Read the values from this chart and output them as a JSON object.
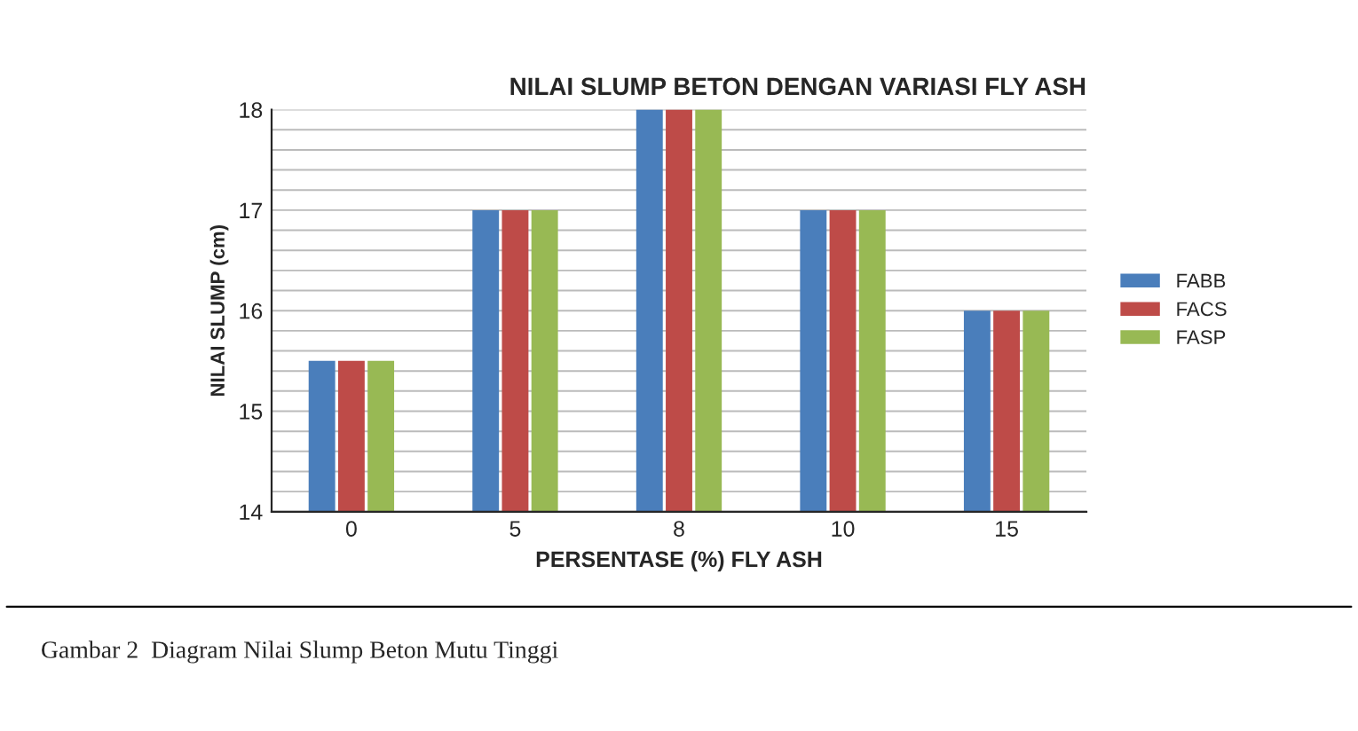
{
  "chart_data": {
    "type": "bar",
    "title": "NILAI SLUMP BETON DENGAN VARIASI FLY ASH",
    "xlabel": "PERSENTASE (%) FLY ASH",
    "ylabel": "NILAI SLUMP (cm)",
    "categories": [
      "0",
      "5",
      "8",
      "10",
      "15"
    ],
    "series": [
      {
        "name": "FABB",
        "color": "#4a7ebb",
        "values": [
          15.5,
          17,
          18,
          17,
          16
        ]
      },
      {
        "name": "FACS",
        "color": "#be4b48",
        "values": [
          15.5,
          17,
          18,
          17,
          16
        ]
      },
      {
        "name": "FASP",
        "color": "#98b954",
        "values": [
          15.5,
          17,
          18,
          17,
          16
        ]
      }
    ],
    "ylim": [
      14,
      18
    ],
    "yticks": [
      14,
      {
        "value": 14.2,
        "label": null
      },
      {
        "value": 14.4,
        "label": null
      },
      {
        "value": 14.6,
        "label": null
      },
      {
        "value": 14.8,
        "label": null
      },
      15,
      {
        "value": 15.2,
        "label": null
      },
      {
        "value": 15.4,
        "label": null
      },
      {
        "value": 15.6,
        "label": null
      },
      {
        "value": 15.8,
        "label": null
      },
      16,
      {
        "value": 16.2,
        "label": null
      },
      {
        "value": 16.4,
        "label": null
      },
      {
        "value": 16.6,
        "label": null
      },
      {
        "value": 16.8,
        "label": null
      },
      17,
      {
        "value": 17.2,
        "label": null
      },
      {
        "value": 17.4,
        "label": null
      },
      {
        "value": 17.6,
        "label": null
      },
      {
        "value": 17.8,
        "label": null
      },
      18
    ],
    "grid": "y",
    "legend": "right",
    "annotations": [
      "Gambar 2  Diagram Nilai Slump Beton Mutu Tinggi"
    ]
  }
}
